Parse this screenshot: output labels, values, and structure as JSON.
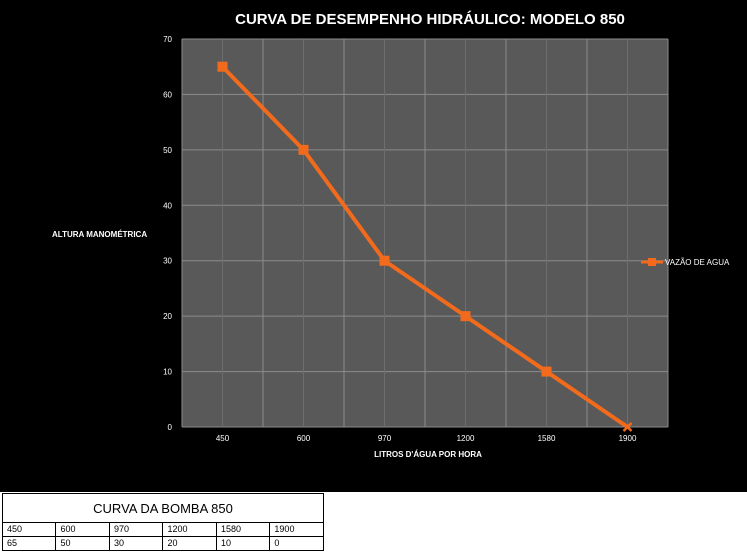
{
  "chart_data": {
    "type": "line",
    "title": "CURVA DE DESEMPENHO HIDRÁULICO: MODELO 850",
    "xlabel": "LITROS D'ÁGUA POR HORA",
    "ylabel": "ALTURA MANOMÉTRICA",
    "categories": [
      "450",
      "600",
      "970",
      "1200",
      "1580",
      "1900"
    ],
    "series": [
      {
        "name": "VAZÃO DE AGUA",
        "values": [
          65,
          50,
          30,
          20,
          10,
          0
        ],
        "color": "#f26b1d"
      }
    ],
    "ylim": [
      0,
      70
    ],
    "yticks": [
      0,
      10,
      20,
      30,
      40,
      50,
      60,
      70
    ],
    "grid": true,
    "legend": "right",
    "plot_background": "#595959",
    "background": "#000000"
  },
  "table": {
    "title": "CURVA DA BOMBA 850",
    "row1": [
      "450",
      "600",
      "970",
      "1200",
      "1580",
      "1900"
    ],
    "row2": [
      "65",
      "50",
      "30",
      "20",
      "10",
      "0"
    ]
  }
}
